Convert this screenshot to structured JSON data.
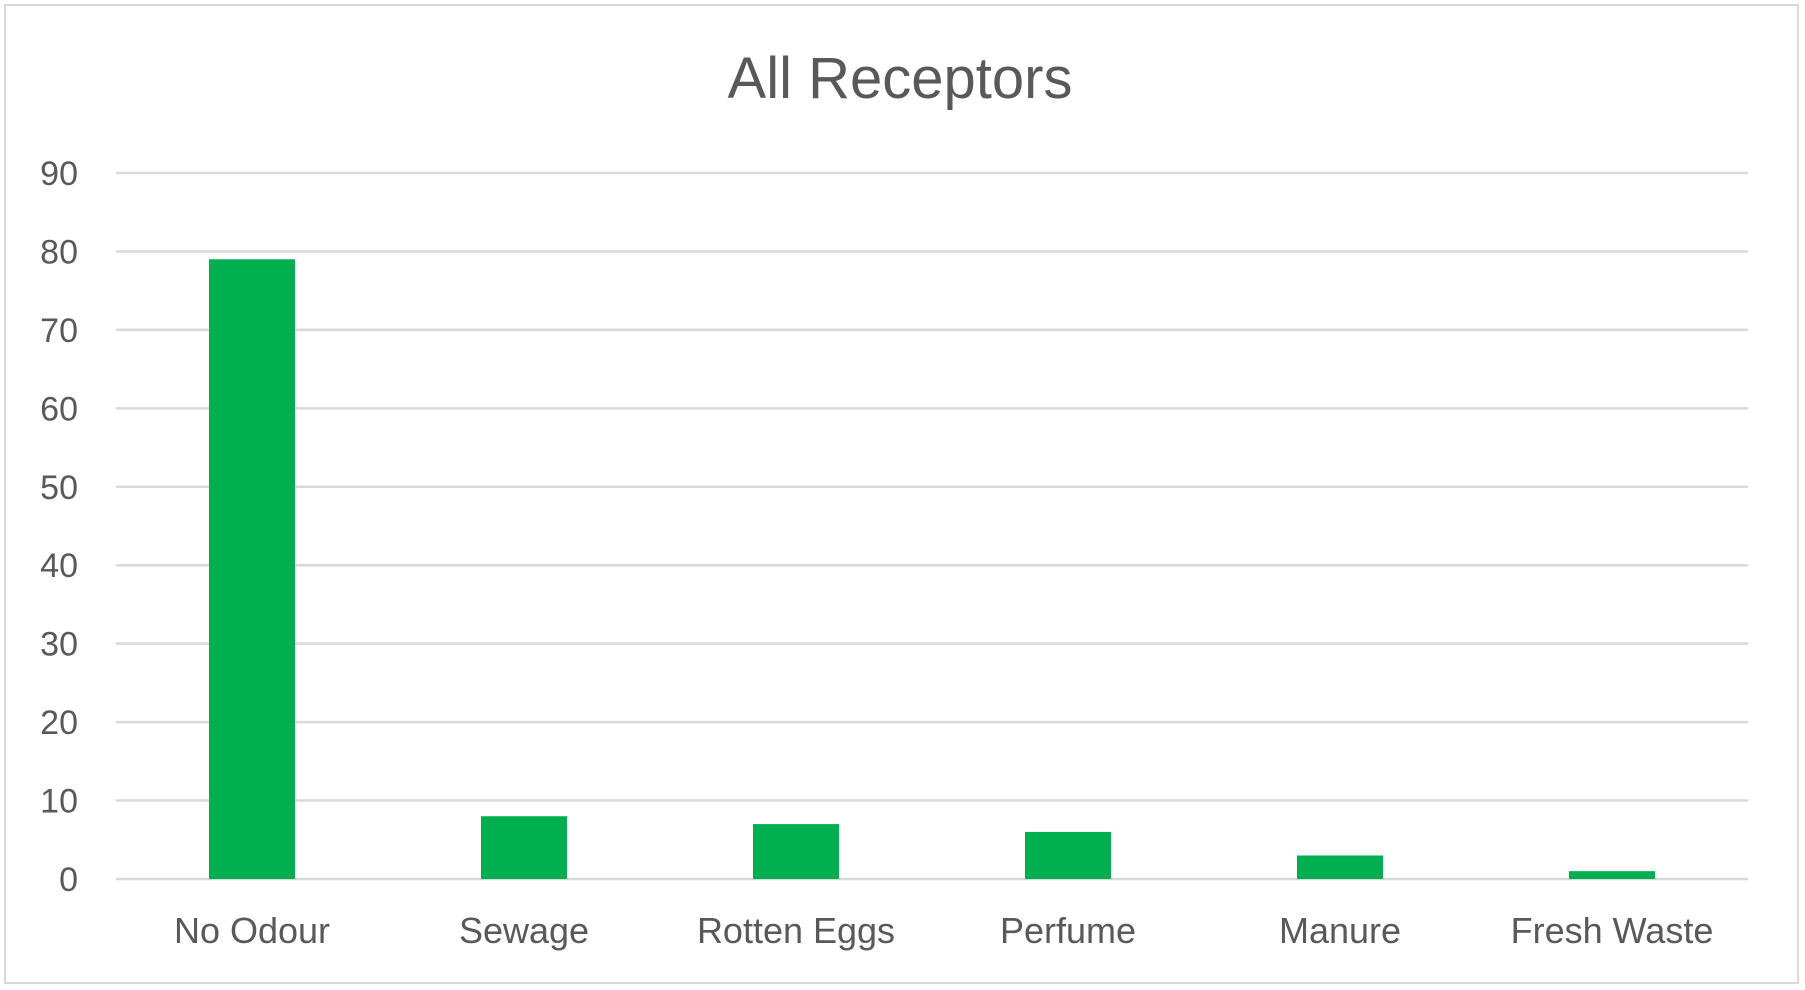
{
  "chart_data": {
    "type": "bar",
    "title": "All Receptors",
    "categories": [
      "No Odour",
      "Sewage",
      "Rotten Eggs",
      "Perfume",
      "Manure",
      "Fresh Waste"
    ],
    "values": [
      79,
      8,
      7,
      6,
      3,
      1
    ],
    "ylim": [
      0,
      90
    ],
    "yticks": [
      0,
      10,
      20,
      30,
      40,
      50,
      60,
      70,
      80,
      90
    ],
    "grid": true,
    "legend": "none",
    "bar_color": "#00b050",
    "xlabel": "",
    "ylabel": ""
  }
}
